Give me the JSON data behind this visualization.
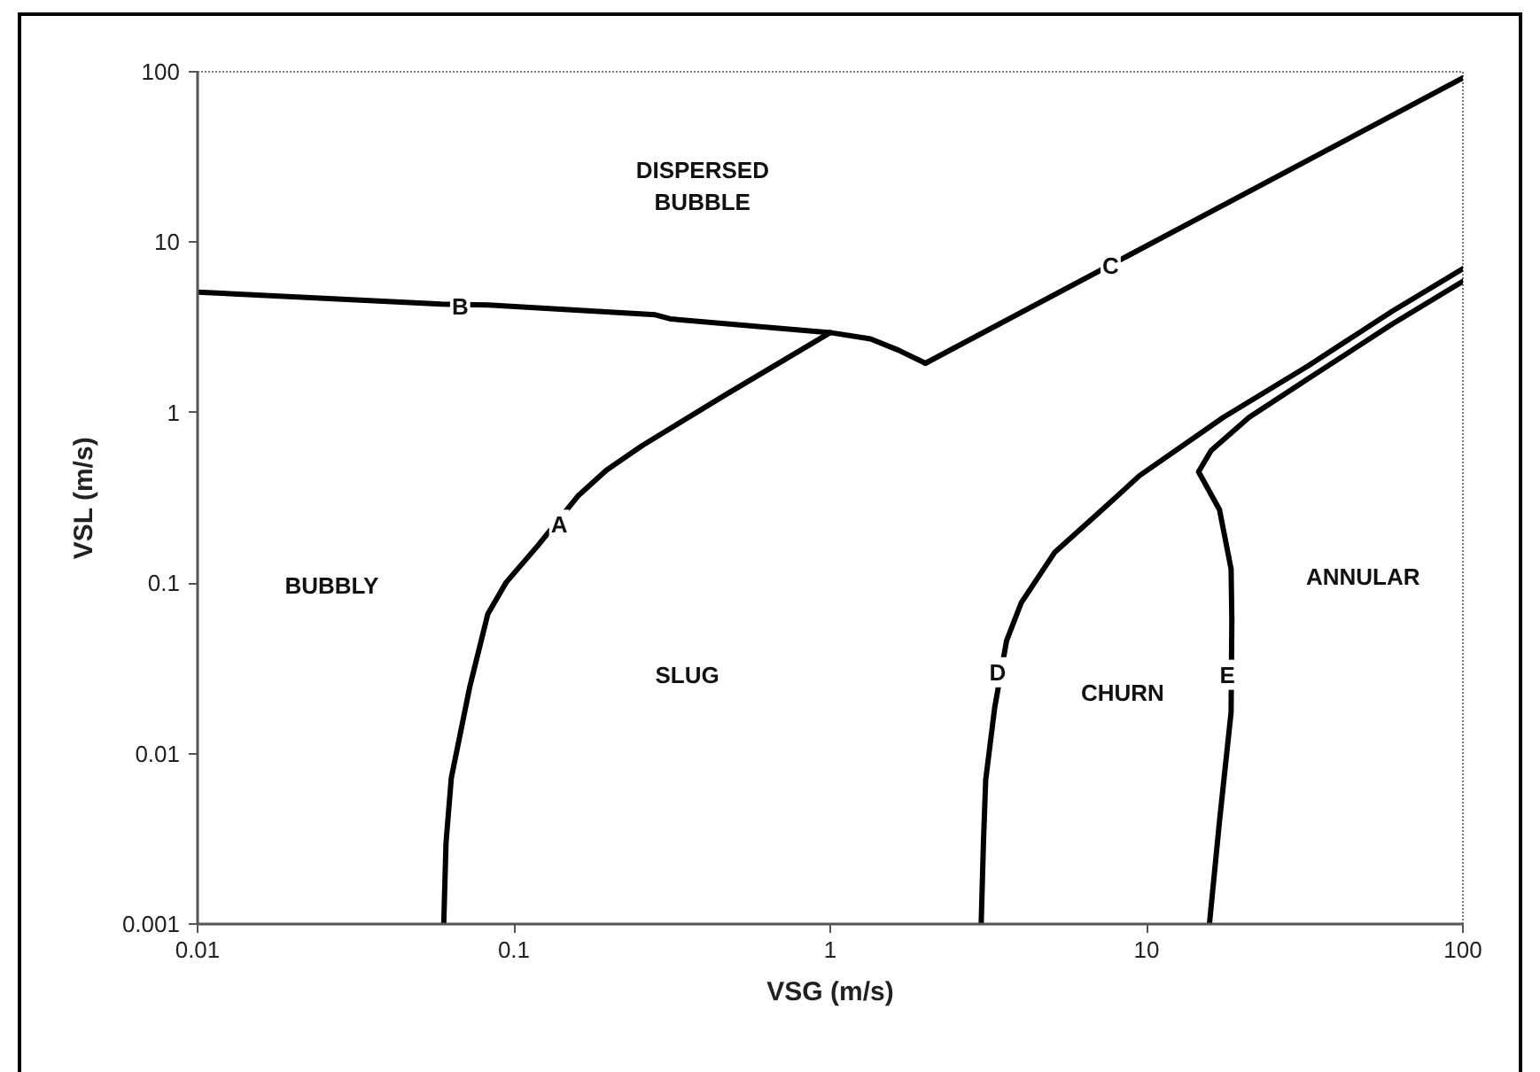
{
  "chart_data": {
    "type": "line",
    "xlabel": "VSG (m/s)",
    "ylabel": "VSL (m/s)",
    "log": "xy",
    "xlim": [
      0.01,
      100
    ],
    "ylim": [
      0.001,
      100
    ],
    "xticks": [
      0.01,
      0.1,
      1,
      10,
      100
    ],
    "yticks": [
      0.001,
      0.01,
      0.1,
      1,
      10,
      100
    ],
    "grid": false,
    "series": [
      {
        "color": "#000000",
        "x": [
          0.06,
          0.061,
          0.0634,
          0.0725,
          0.0827,
          0.0945,
          0.119,
          0.16,
          0.196,
          0.255,
          0.464,
          1.0
        ],
        "values": [
          0.001,
          0.003,
          0.0072,
          0.0246,
          0.066,
          0.101,
          0.166,
          0.327,
          0.46,
          0.643,
          1.265,
          2.95
        ]
      },
      {
        "color": "#000000",
        "x": [
          0.01,
          0.059,
          0.083,
          0.28,
          0.312,
          1.0,
          1.34,
          1.64,
          2.0
        ],
        "values": [
          5.1,
          4.33,
          4.28,
          3.75,
          3.55,
          2.95,
          2.71,
          2.33,
          1.95
        ]
      },
      {
        "color": "#000000",
        "x": [
          2.0,
          100
        ],
        "values": [
          1.95,
          92
        ]
      },
      {
        "color": "#000000",
        "x": [
          3.0,
          3.05,
          3.1,
          3.31,
          3.61,
          4.02,
          5.13,
          7.0,
          9.5,
          17.5,
          32.4,
          59.8,
          100
        ],
        "values": [
          0.001,
          0.003,
          0.007,
          0.0186,
          0.046,
          0.077,
          0.152,
          0.255,
          0.427,
          0.94,
          1.88,
          3.94,
          7.0
        ]
      },
      {
        "color": "#000000",
        "x": [
          15.8,
          17.0,
          18.5,
          18.6,
          18.5,
          17.0,
          14.6,
          16.0,
          21.1,
          32.4,
          59.8,
          100
        ],
        "values": [
          0.001,
          0.004,
          0.0175,
          0.061,
          0.121,
          0.27,
          0.45,
          0.6,
          0.94,
          1.58,
          3.31,
          5.9
        ]
      }
    ],
    "annotations": [
      {
        "text": "A",
        "x": 0.139,
        "y": 0.22
      },
      {
        "text": "B",
        "x": 0.0676,
        "y": 4.2
      },
      {
        "text": "C",
        "x": 7.7,
        "y": 7.3
      },
      {
        "text": "D",
        "x": 3.38,
        "y": 0.03
      },
      {
        "text": "E",
        "x": 18.0,
        "y": 0.029
      },
      "DISPERSED BUBBLE",
      "BUBBLY",
      "SLUG",
      "CHURN",
      "ANNULAR"
    ]
  }
}
